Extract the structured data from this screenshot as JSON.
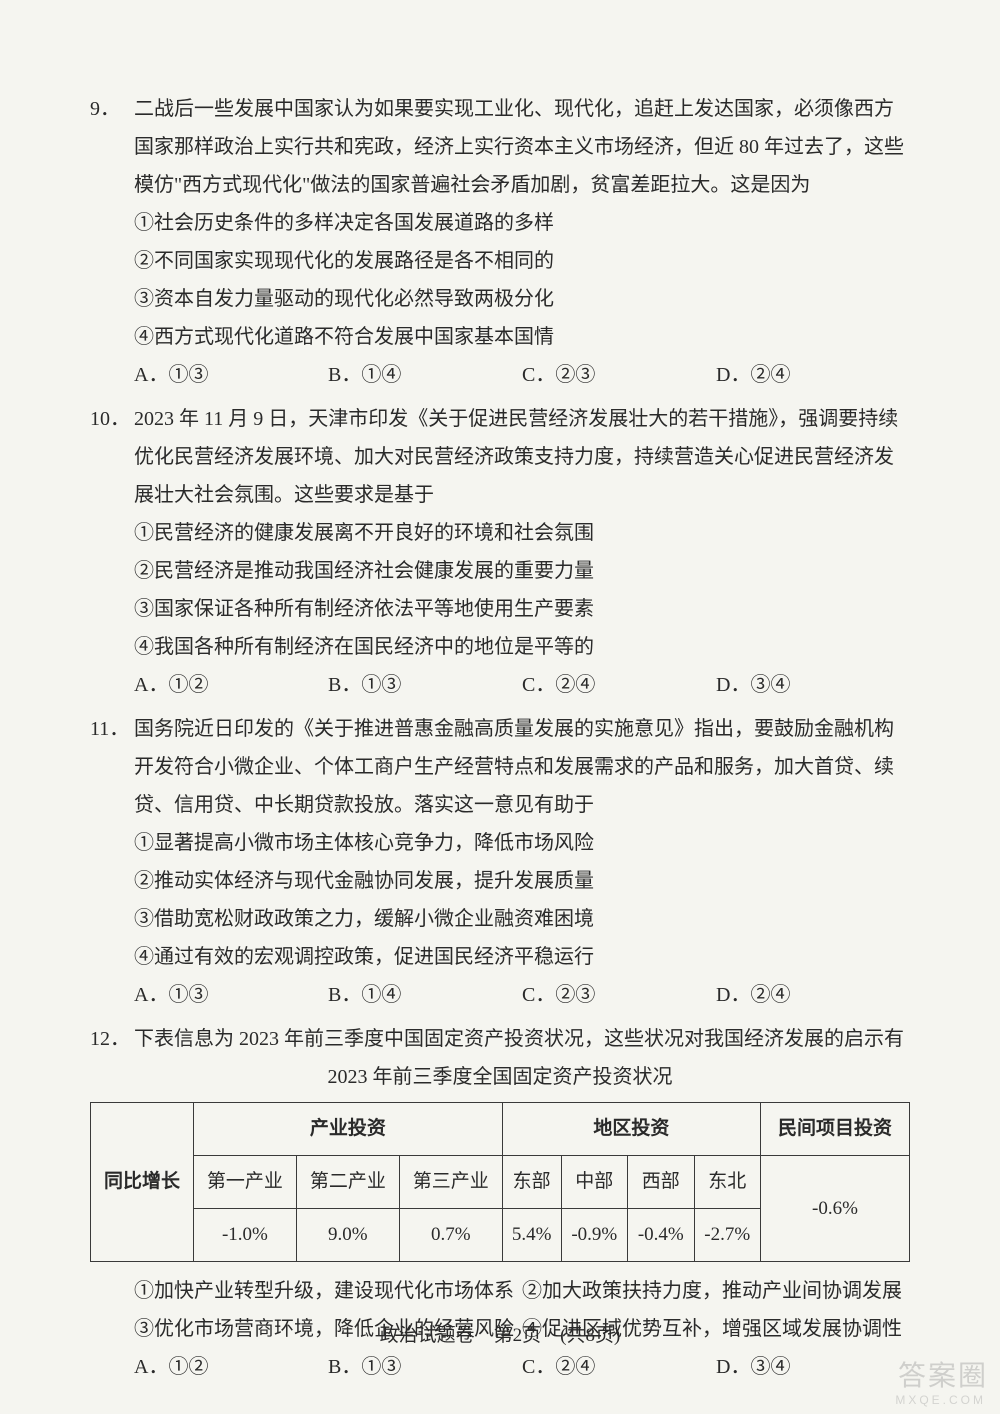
{
  "questions": [
    {
      "num": "9．",
      "stem": "二战后一些发展中国家认为如果要实现工业化、现代化，追赶上发达国家，必须像西方国家那样政治上实行共和宪政，经济上实行资本主义市场经济，但近 80 年过去了，这些模仿\"西方式现代化\"做法的国家普遍社会矛盾加剧，贫富差距拉大。这是因为",
      "lines": [
        "①社会历史条件的多样决定各国发展道路的多样",
        "②不同国家实现现代化的发展路径是各不相同的",
        "③资本自发力量驱动的现代化必然导致两极分化",
        "④西方式现代化道路不符合发展中国家基本国情"
      ],
      "options": [
        "A．①③",
        "B．①④",
        "C．②③",
        "D．②④"
      ]
    },
    {
      "num": "10．",
      "stem": "2023 年 11 月 9 日，天津市印发《关于促进民营经济发展壮大的若干措施》，强调要持续优化民营经济发展环境、加大对民营经济政策支持力度，持续营造关心促进民营经济发展壮大社会氛围。这些要求是基于",
      "lines": [
        "①民营经济的健康发展离不开良好的环境和社会氛围",
        "②民营经济是推动我国经济社会健康发展的重要力量",
        "③国家保证各种所有制经济依法平等地使用生产要素",
        "④我国各种所有制经济在国民经济中的地位是平等的"
      ],
      "options": [
        "A．①②",
        "B．①③",
        "C．②④",
        "D．③④"
      ]
    },
    {
      "num": "11．",
      "stem": "国务院近日印发的《关于推进普惠金融高质量发展的实施意见》指出，要鼓励金融机构开发符合小微企业、个体工商户生产经营特点和发展需求的产品和服务，加大首贷、续贷、信用贷、中长期贷款投放。落实这一意见有助于",
      "lines": [
        "①显著提高小微市场主体核心竞争力，降低市场风险",
        "②推动实体经济与现代金融协同发展，提升发展质量",
        "③借助宽松财政政策之力，缓解小微企业融资难困境",
        "④通过有效的宏观调控政策，促进国民经济平稳运行"
      ],
      "options": [
        "A．①③",
        "B．①④",
        "C．②③",
        "D．②④"
      ]
    },
    {
      "num": "12．",
      "stem": "下表信息为 2023 年前三季度中国固定资产投资状况，这些状况对我国经济发展的启示有",
      "title": "2023 年前三季度全国固定资产投资状况",
      "table": {
        "head_industry": "产业投资",
        "head_region": "地区投资",
        "head_private": "民间项目投资",
        "row_label": "同比增长",
        "cols_industry": [
          "第一产业",
          "第二产业",
          "第三产业"
        ],
        "cols_region": [
          "东部",
          "中部",
          "西部",
          "东北"
        ],
        "vals_industry": [
          "-1.0%",
          "9.0%",
          "0.7%"
        ],
        "vals_region": [
          "5.4%",
          "-0.9%",
          "-0.4%",
          "-2.7%"
        ],
        "val_private": "-0.6%"
      },
      "pairs": [
        [
          "①加快产业转型升级，建设现代化市场体系",
          "②加大政策扶持力度，推动产业间协调发展"
        ],
        [
          "③优化市场营商环境，降低企业的经营风险",
          "④促进区域优势互补，增强区域发展协调性"
        ]
      ],
      "options": [
        "A．①②",
        "B．①③",
        "C．②④",
        "D．③④"
      ]
    }
  ],
  "footer": "政治试题卷　第2页　(共8页)",
  "watermark": "答案圈",
  "watermark_sub": "MXQE.COM",
  "colors": {
    "bg": "#f5f5f0",
    "text": "#2a2a2a",
    "border": "#3a3a3a"
  }
}
